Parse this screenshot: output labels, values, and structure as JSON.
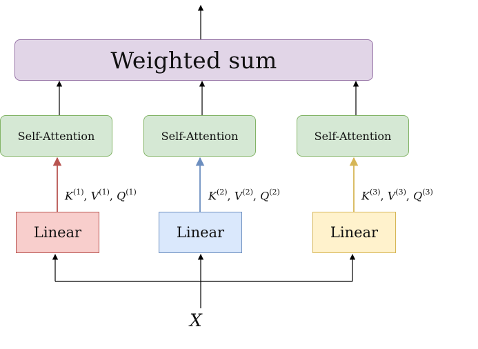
{
  "diagram": {
    "output_box": {
      "label": "Weighted sum",
      "fill": "#e1d5e7",
      "border": "#9673a6"
    },
    "heads": [
      {
        "attention_label": "Self-Attention",
        "linear_label": "Linear",
        "linear_fill": "#f8cecc",
        "linear_border": "#b85450",
        "arrow_color": "#b85450",
        "kvq": {
          "k": "K",
          "v": "V",
          "q": "Q",
          "sup": "(1)",
          "sep": ","
        }
      },
      {
        "attention_label": "Self-Attention",
        "linear_label": "Linear",
        "linear_fill": "#dae8fc",
        "linear_border": "#6c8ebf",
        "arrow_color": "#6c8ebf",
        "kvq": {
          "k": "K",
          "v": "V",
          "q": "Q",
          "sup": "(2)",
          "sep": ","
        }
      },
      {
        "attention_label": "Self-Attention",
        "linear_label": "Linear",
        "linear_fill": "#fff2cc",
        "linear_border": "#d6b656",
        "arrow_color": "#d6b656",
        "kvq": {
          "k": "K",
          "v": "V",
          "q": "Q",
          "sup": "(3)",
          "sep": ","
        }
      }
    ],
    "attention_fill": "#d5e8d4",
    "attention_border": "#82b366",
    "input_label": "X",
    "edge_color": "#000000"
  }
}
